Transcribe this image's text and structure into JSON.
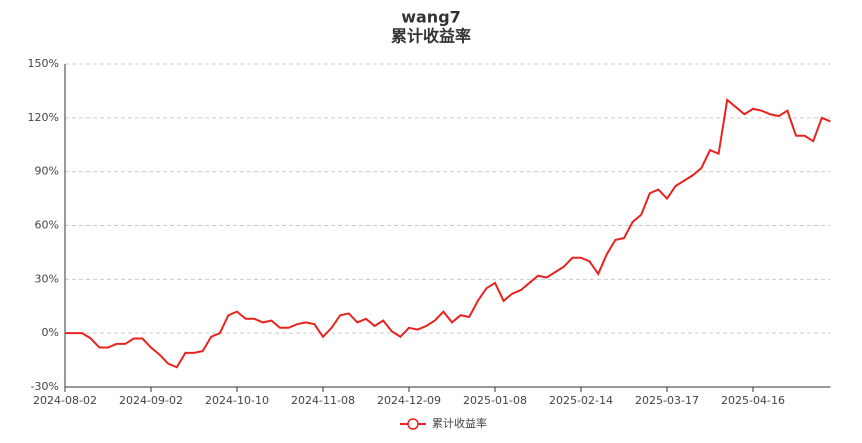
{
  "chart_data": {
    "type": "line",
    "title": "wang7",
    "subtitle": "累计收益率",
    "categories": [
      "2024-08-02",
      null,
      null,
      null,
      null,
      null,
      null,
      null,
      null,
      null,
      "2024-09-02",
      null,
      null,
      null,
      null,
      null,
      null,
      null,
      null,
      null,
      "2024-10-10",
      null,
      null,
      null,
      null,
      null,
      null,
      null,
      null,
      null,
      "2024-11-08",
      null,
      null,
      null,
      null,
      null,
      null,
      null,
      null,
      null,
      "2024-12-09",
      null,
      null,
      null,
      null,
      null,
      null,
      null,
      null,
      null,
      "2025-01-08",
      null,
      null,
      null,
      null,
      null,
      null,
      null,
      null,
      null,
      "2025-02-14",
      null,
      null,
      null,
      null,
      null,
      null,
      null,
      null,
      null,
      "2025-03-17",
      null,
      null,
      null,
      null,
      null,
      null,
      null,
      null,
      null,
      "2025-04-16",
      null,
      null,
      null,
      null,
      null,
      null,
      null,
      null,
      null
    ],
    "series": [
      {
        "name": "累计收益率",
        "color": "#e8231f",
        "values": [
          0,
          0,
          0,
          -3,
          -8,
          -8,
          -6,
          -6,
          -3,
          -3,
          -8,
          -12,
          -17,
          -19,
          -11,
          -11,
          -10,
          -2,
          0,
          10,
          12,
          8,
          8,
          6,
          7,
          3,
          3,
          5,
          6,
          5,
          -2,
          3,
          10,
          11,
          6,
          8,
          4,
          7,
          1,
          -2,
          3,
          2,
          4,
          7,
          12,
          6,
          10,
          9,
          18,
          25,
          28,
          18,
          22,
          24,
          28,
          32,
          31,
          34,
          37,
          42,
          42,
          40,
          33,
          44,
          52,
          53,
          62,
          66,
          78,
          80,
          75,
          82,
          85,
          88,
          92,
          102,
          100,
          130,
          126,
          122,
          125,
          124,
          122,
          121,
          124,
          110,
          110,
          107,
          120,
          118
        ]
      }
    ],
    "ylim": [
      -30,
      150
    ],
    "yticks": [
      {
        "value": -30,
        "label": "-30%"
      },
      {
        "value": 0,
        "label": "0%"
      },
      {
        "value": 30,
        "label": "30%"
      },
      {
        "value": 60,
        "label": "60%"
      },
      {
        "value": 90,
        "label": "90%"
      },
      {
        "value": 120,
        "label": "120%"
      },
      {
        "value": 150,
        "label": "150%"
      }
    ],
    "grid": true
  }
}
